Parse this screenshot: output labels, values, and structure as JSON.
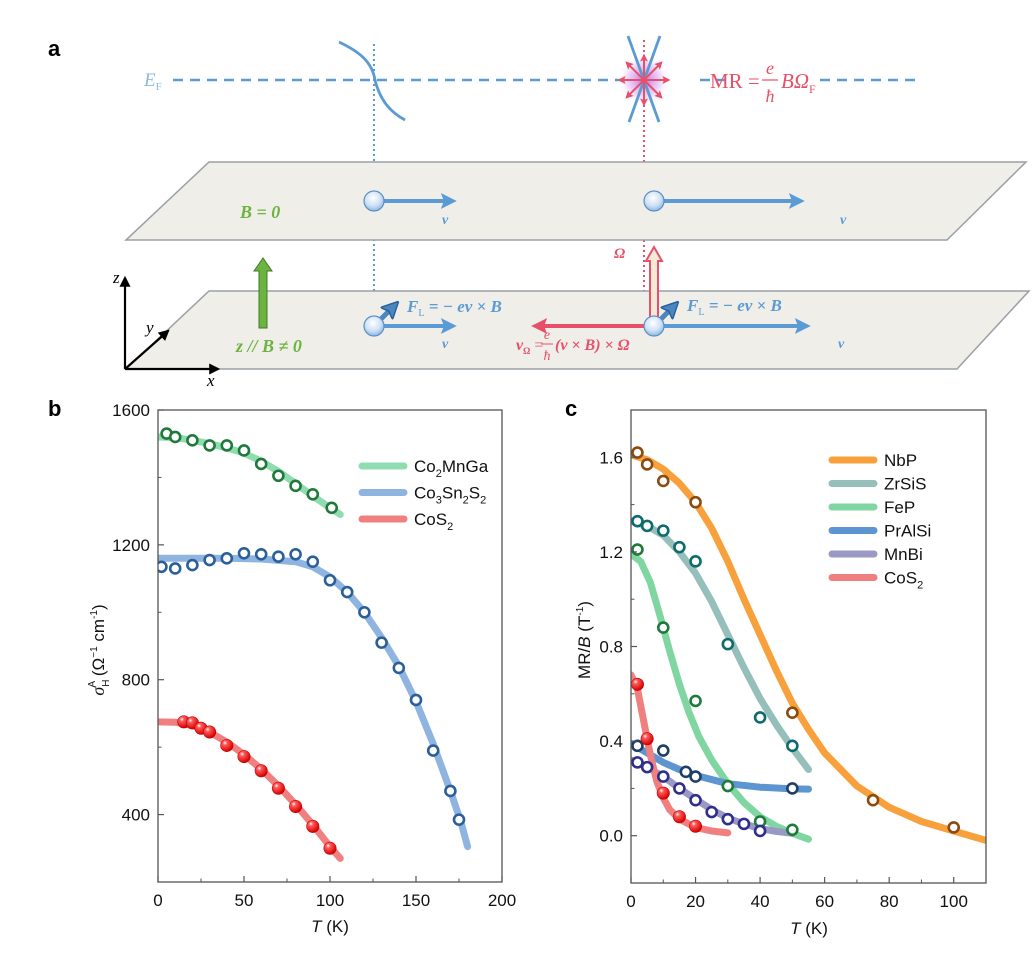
{
  "figure": {
    "panel_labels": {
      "a": "a",
      "b": "b",
      "c": "c"
    },
    "colors": {
      "blue": "#5b9bd5",
      "red": "#e8506a",
      "green": "#6db33f",
      "plane_fill": "#efeee8",
      "plane_stroke": "#9aa0a6"
    }
  },
  "schematic": {
    "fermi_label": "E",
    "fermi_sub": "F",
    "mr_formula": {
      "lhs": "MR =",
      "num": "e",
      "den": "ħ",
      "rhs": "BΩ",
      "sub": "F"
    },
    "top_plane": {
      "field_label": "B = 0",
      "velocity_label": "v",
      "velocity_label_right": "v"
    },
    "bottom_plane": {
      "field_label": "z // B ≠ 0",
      "lorentz_label_left": {
        "main": "F",
        "sub": "L",
        "rest": " = − ev × B"
      },
      "lorentz_label_right": {
        "main": "F",
        "sub": "L",
        "rest": " = − ev × B"
      },
      "velocity_label": "v",
      "velocity_label_right": "v",
      "anomalous_velocity": {
        "main": "v",
        "sub": "Ω",
        "eq": " = ",
        "num": "e",
        "den": "ħ",
        "rest": "(v × B) × Ω"
      },
      "berry_label": "Ω"
    },
    "axes": {
      "x": "x",
      "y": "y",
      "z": "z"
    }
  },
  "chart_data": [
    {
      "id": "b",
      "type": "scatter",
      "title": "",
      "xlabel": "T (K)",
      "xlabel_italic": "T",
      "xlabel_unit": " (K)",
      "ylabel": "σ_H^A (Ω⁻¹ cm⁻¹)",
      "xlim": [
        0,
        200
      ],
      "ylim": [
        200,
        1600
      ],
      "xticks": [
        0,
        50,
        100,
        150,
        200
      ],
      "yticks": [
        400,
        800,
        1200,
        1600
      ],
      "legend_position": "top-right",
      "grid": false,
      "series": [
        {
          "name": "Co2MnGa",
          "legend": {
            "parts": [
              "Co",
              "2",
              "MnGa"
            ]
          },
          "line_color": "#8fdcb0",
          "marker_color": "#1f7a3a",
          "marker": "open-circle",
          "points": [
            [
              5,
              1530
            ],
            [
              10,
              1520
            ],
            [
              20,
              1510
            ],
            [
              30,
              1495
            ],
            [
              40,
              1495
            ],
            [
              50,
              1480
            ],
            [
              60,
              1440
            ],
            [
              70,
              1405
            ],
            [
              80,
              1375
            ],
            [
              90,
              1350
            ],
            [
              101,
              1310
            ]
          ],
          "fit": [
            [
              0,
              1520
            ],
            [
              10,
              1518
            ],
            [
              20,
              1510
            ],
            [
              30,
              1500
            ],
            [
              40,
              1488
            ],
            [
              50,
              1472
            ],
            [
              60,
              1448
            ],
            [
              70,
              1418
            ],
            [
              80,
              1382
            ],
            [
              90,
              1345
            ],
            [
              100,
              1310
            ],
            [
              106,
              1290
            ]
          ]
        },
        {
          "name": "Co3Sn2S2",
          "legend": {
            "parts": [
              "Co",
              "3",
              "Sn",
              "2",
              "S",
              "2"
            ]
          },
          "line_color": "#8fb4e0",
          "marker_color": "#2a5f99",
          "marker": "open-circle",
          "points": [
            [
              2,
              1135
            ],
            [
              10,
              1130
            ],
            [
              20,
              1140
            ],
            [
              30,
              1155
            ],
            [
              40,
              1160
            ],
            [
              50,
              1175
            ],
            [
              60,
              1172
            ],
            [
              70,
              1165
            ],
            [
              80,
              1172
            ],
            [
              90,
              1150
            ],
            [
              100,
              1095
            ],
            [
              110,
              1060
            ],
            [
              120,
              1000
            ],
            [
              130,
              910
            ],
            [
              140,
              835
            ],
            [
              150,
              740
            ],
            [
              160,
              590
            ],
            [
              170,
              470
            ],
            [
              175,
              385
            ]
          ],
          "fit": [
            [
              0,
              1160
            ],
            [
              20,
              1160
            ],
            [
              40,
              1160
            ],
            [
              60,
              1158
            ],
            [
              80,
              1150
            ],
            [
              90,
              1135
            ],
            [
              100,
              1105
            ],
            [
              110,
              1060
            ],
            [
              120,
              1000
            ],
            [
              130,
              925
            ],
            [
              140,
              840
            ],
            [
              150,
              735
            ],
            [
              160,
              610
            ],
            [
              170,
              470
            ],
            [
              176,
              380
            ],
            [
              180,
              305
            ]
          ]
        },
        {
          "name": "CoS2",
          "legend": {
            "parts": [
              "CoS",
              "2"
            ]
          },
          "line_color": "#f08080",
          "marker_color": "#e8141a",
          "marker": "filled-sphere",
          "points": [
            [
              15,
              675
            ],
            [
              20,
              672
            ],
            [
              25,
              656
            ],
            [
              30,
              645
            ],
            [
              40,
              605
            ],
            [
              50,
              572
            ],
            [
              60,
              530
            ],
            [
              70,
              478
            ],
            [
              80,
              424
            ],
            [
              90,
              365
            ],
            [
              100,
              300
            ]
          ],
          "fit": [
            [
              0,
              675
            ],
            [
              10,
              674
            ],
            [
              20,
              665
            ],
            [
              30,
              645
            ],
            [
              40,
              615
            ],
            [
              50,
              578
            ],
            [
              60,
              535
            ],
            [
              70,
              485
            ],
            [
              80,
              430
            ],
            [
              90,
              370
            ],
            [
              100,
              305
            ],
            [
              106,
              270
            ]
          ]
        }
      ]
    },
    {
      "id": "c",
      "type": "scatter",
      "title": "",
      "xlabel": "T (K)",
      "xlabel_italic": "T",
      "xlabel_unit": " (K)",
      "ylabel": "MR/B (T⁻¹)",
      "xlim": [
        0,
        110
      ],
      "ylim": [
        -0.2,
        1.8
      ],
      "xticks": [
        0,
        20,
        40,
        60,
        80,
        100
      ],
      "yticks": [
        0.0,
        0.4,
        0.8,
        1.2,
        1.6
      ],
      "ytick_labels": [
        "0.0",
        "0.4",
        "0.8",
        "1.2",
        "1.6"
      ],
      "legend_position": "top-right",
      "grid": false,
      "series": [
        {
          "name": "NbP",
          "legend": {
            "parts": [
              "NbP"
            ]
          },
          "line_color": "#f7a03c",
          "marker_color": "#8b4a0e",
          "marker": "open-circle",
          "points": [
            [
              2,
              1.62
            ],
            [
              5,
              1.57
            ],
            [
              10,
              1.5
            ],
            [
              20,
              1.41
            ],
            [
              50,
              0.52
            ],
            [
              75,
              0.15
            ],
            [
              100,
              0.035
            ]
          ],
          "fit": [
            [
              0,
              1.61
            ],
            [
              5,
              1.59
            ],
            [
              10,
              1.55
            ],
            [
              15,
              1.49
            ],
            [
              20,
              1.41
            ],
            [
              25,
              1.3
            ],
            [
              30,
              1.16
            ],
            [
              35,
              1.0
            ],
            [
              40,
              0.85
            ],
            [
              45,
              0.7
            ],
            [
              50,
              0.56
            ],
            [
              55,
              0.45
            ],
            [
              60,
              0.35
            ],
            [
              70,
              0.21
            ],
            [
              80,
              0.12
            ],
            [
              90,
              0.06
            ],
            [
              100,
              0.02
            ],
            [
              110,
              -0.02
            ]
          ]
        },
        {
          "name": "ZrSiS",
          "legend": {
            "parts": [
              "ZrSiS"
            ]
          },
          "line_color": "#96bfbb",
          "marker_color": "#0e6b6b",
          "marker": "open-circle",
          "points": [
            [
              2,
              1.33
            ],
            [
              5,
              1.31
            ],
            [
              10,
              1.29
            ],
            [
              15,
              1.22
            ],
            [
              20,
              1.16
            ],
            [
              30,
              0.81
            ],
            [
              40,
              0.5
            ],
            [
              50,
              0.38
            ]
          ],
          "fit": [
            [
              0,
              1.33
            ],
            [
              5,
              1.31
            ],
            [
              10,
              1.27
            ],
            [
              15,
              1.2
            ],
            [
              20,
              1.11
            ],
            [
              25,
              0.99
            ],
            [
              30,
              0.85
            ],
            [
              35,
              0.71
            ],
            [
              40,
              0.58
            ],
            [
              45,
              0.47
            ],
            [
              50,
              0.37
            ],
            [
              55,
              0.28
            ]
          ]
        },
        {
          "name": "FeP",
          "legend": {
            "parts": [
              "FeP"
            ]
          },
          "line_color": "#7fd6a0",
          "marker_color": "#1e7a3a",
          "marker": "open-circle",
          "points": [
            [
              2,
              1.21
            ],
            [
              10,
              0.88
            ],
            [
              20,
              0.57
            ],
            [
              30,
              0.21
            ],
            [
              40,
              0.06
            ],
            [
              50,
              0.025
            ]
          ],
          "fit": [
            [
              0,
              1.19
            ],
            [
              3,
              1.16
            ],
            [
              6,
              1.07
            ],
            [
              9,
              0.93
            ],
            [
              12,
              0.78
            ],
            [
              15,
              0.64
            ],
            [
              18,
              0.52
            ],
            [
              21,
              0.42
            ],
            [
              25,
              0.32
            ],
            [
              30,
              0.22
            ],
            [
              35,
              0.14
            ],
            [
              40,
              0.08
            ],
            [
              45,
              0.04
            ],
            [
              50,
              0.01
            ],
            [
              55,
              -0.015
            ]
          ]
        },
        {
          "name": "PrAlSi",
          "legend": {
            "parts": [
              "PrAlSi"
            ]
          },
          "line_color": "#5c95d0",
          "marker_color": "#1f3f66",
          "marker": "open-circle",
          "points": [
            [
              2,
              0.38
            ],
            [
              10,
              0.36
            ],
            [
              17,
              0.27
            ],
            [
              20,
              0.25
            ],
            [
              50,
              0.2
            ]
          ],
          "fit": [
            [
              0,
              0.39
            ],
            [
              5,
              0.35
            ],
            [
              10,
              0.31
            ],
            [
              15,
              0.28
            ],
            [
              20,
              0.255
            ],
            [
              30,
              0.22
            ],
            [
              40,
              0.205
            ],
            [
              50,
              0.198
            ],
            [
              55,
              0.197
            ]
          ]
        },
        {
          "name": "MnBi",
          "legend": {
            "parts": [
              "MnBi"
            ]
          },
          "line_color": "#9a98c4",
          "marker_color": "#2e2e8c",
          "marker": "open-circle",
          "points": [
            [
              2,
              0.31
            ],
            [
              5,
              0.29
            ],
            [
              10,
              0.25
            ],
            [
              15,
              0.2
            ],
            [
              20,
              0.15
            ],
            [
              25,
              0.1
            ],
            [
              30,
              0.07
            ],
            [
              35,
              0.05
            ],
            [
              40,
              0.02
            ]
          ],
          "fit": [
            [
              0,
              0.32
            ],
            [
              5,
              0.29
            ],
            [
              10,
              0.25
            ],
            [
              15,
              0.2
            ],
            [
              20,
              0.155
            ],
            [
              25,
              0.11
            ],
            [
              30,
              0.075
            ],
            [
              35,
              0.05
            ],
            [
              40,
              0.03
            ],
            [
              45,
              0.018
            ],
            [
              50,
              0.01
            ]
          ]
        },
        {
          "name": "CoS2",
          "legend": {
            "parts": [
              "CoS",
              "2"
            ]
          },
          "line_color": "#f08080",
          "marker_color": "#e8141a",
          "marker": "filled-sphere",
          "points": [
            [
              2,
              0.64
            ],
            [
              5,
              0.41
            ],
            [
              10,
              0.18
            ],
            [
              15,
              0.08
            ],
            [
              20,
              0.04
            ]
          ],
          "fit": [
            [
              0,
              0.68
            ],
            [
              2,
              0.62
            ],
            [
              4,
              0.48
            ],
            [
              6,
              0.34
            ],
            [
              8,
              0.23
            ],
            [
              10,
              0.16
            ],
            [
              12,
              0.11
            ],
            [
              15,
              0.07
            ],
            [
              20,
              0.035
            ],
            [
              25,
              0.02
            ],
            [
              30,
              0.012
            ]
          ]
        }
      ]
    }
  ]
}
